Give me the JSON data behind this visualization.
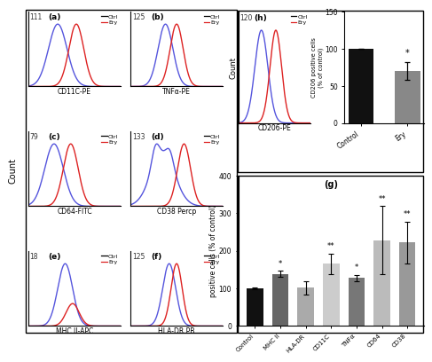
{
  "flow_panels": [
    {
      "label": "a",
      "xlabel": "CD11C-PE",
      "ymax": 111,
      "ctrl": {
        "mean": 0.32,
        "sigma": 0.1
      },
      "ery": {
        "mean": 0.52,
        "sigma": 0.08
      }
    },
    {
      "label": "b",
      "xlabel": "TNFα-PE",
      "ymax": 125,
      "ctrl": {
        "mean": 0.38,
        "sigma": 0.08
      },
      "ery": {
        "mean": 0.5,
        "sigma": 0.07
      }
    },
    {
      "label": "c",
      "xlabel": "CD64-FITC",
      "ymax": 79,
      "ctrl": {
        "mean": 0.28,
        "sigma": 0.1
      },
      "ery": {
        "mean": 0.46,
        "sigma": 0.08
      }
    },
    {
      "label": "d",
      "xlabel": "CD38 Percp",
      "ymax": 133,
      "ctrl": {
        "mean": 0.35,
        "sigma": 0.13,
        "bumpy": true
      },
      "ery": {
        "mean": 0.58,
        "sigma": 0.07
      }
    },
    {
      "label": "e",
      "xlabel": "MHC II-APC",
      "ymax": 18,
      "ctrl": {
        "mean": 0.4,
        "sigma": 0.08
      },
      "ery": {
        "mean": 0.48,
        "sigma": 0.07,
        "low": true
      }
    },
    {
      "label": "f",
      "xlabel": "HLA-DR PB",
      "ymax": 125,
      "ctrl": {
        "mean": 0.42,
        "sigma": 0.07
      },
      "ery": {
        "mean": 0.5,
        "sigma": 0.06
      }
    }
  ],
  "flow_h": {
    "label": "h",
    "xlabel": "CD206-PE",
    "ymax": 120,
    "ctrl": {
      "mean": 0.32,
      "sigma": 0.09
    },
    "ery": {
      "mean": 0.52,
      "sigma": 0.08
    }
  },
  "bar_h": {
    "categories": [
      "Control",
      "Ery"
    ],
    "values": [
      100,
      70
    ],
    "errors": [
      0,
      12
    ],
    "colors": [
      "#111111",
      "#888888"
    ],
    "ylabel": "CD206 positive cells\n(% of control)",
    "ylim": [
      0,
      150
    ],
    "yticks": [
      0,
      50,
      100,
      150
    ],
    "sig": [
      "",
      "*"
    ]
  },
  "bar_g": {
    "categories": [
      "Control",
      "MHC II",
      "HLA-DR",
      "CD11C",
      "TNFα",
      "CD64",
      "CD38"
    ],
    "values": [
      100,
      138,
      102,
      165,
      128,
      228,
      222
    ],
    "errors": [
      2,
      8,
      18,
      28,
      8,
      90,
      55
    ],
    "colors": [
      "#111111",
      "#666666",
      "#aaaaaa",
      "#cccccc",
      "#777777",
      "#bbbbbb",
      "#999999"
    ],
    "ylabel": "positive cells (% of control)",
    "ylim": [
      0,
      400
    ],
    "yticks": [
      0,
      100,
      200,
      300,
      400
    ],
    "sig": [
      "",
      "*",
      "",
      "**",
      "*",
      "**",
      "**"
    ],
    "label": "g"
  },
  "ctrl_color": "#5555dd",
  "ery_color": "#dd2222"
}
